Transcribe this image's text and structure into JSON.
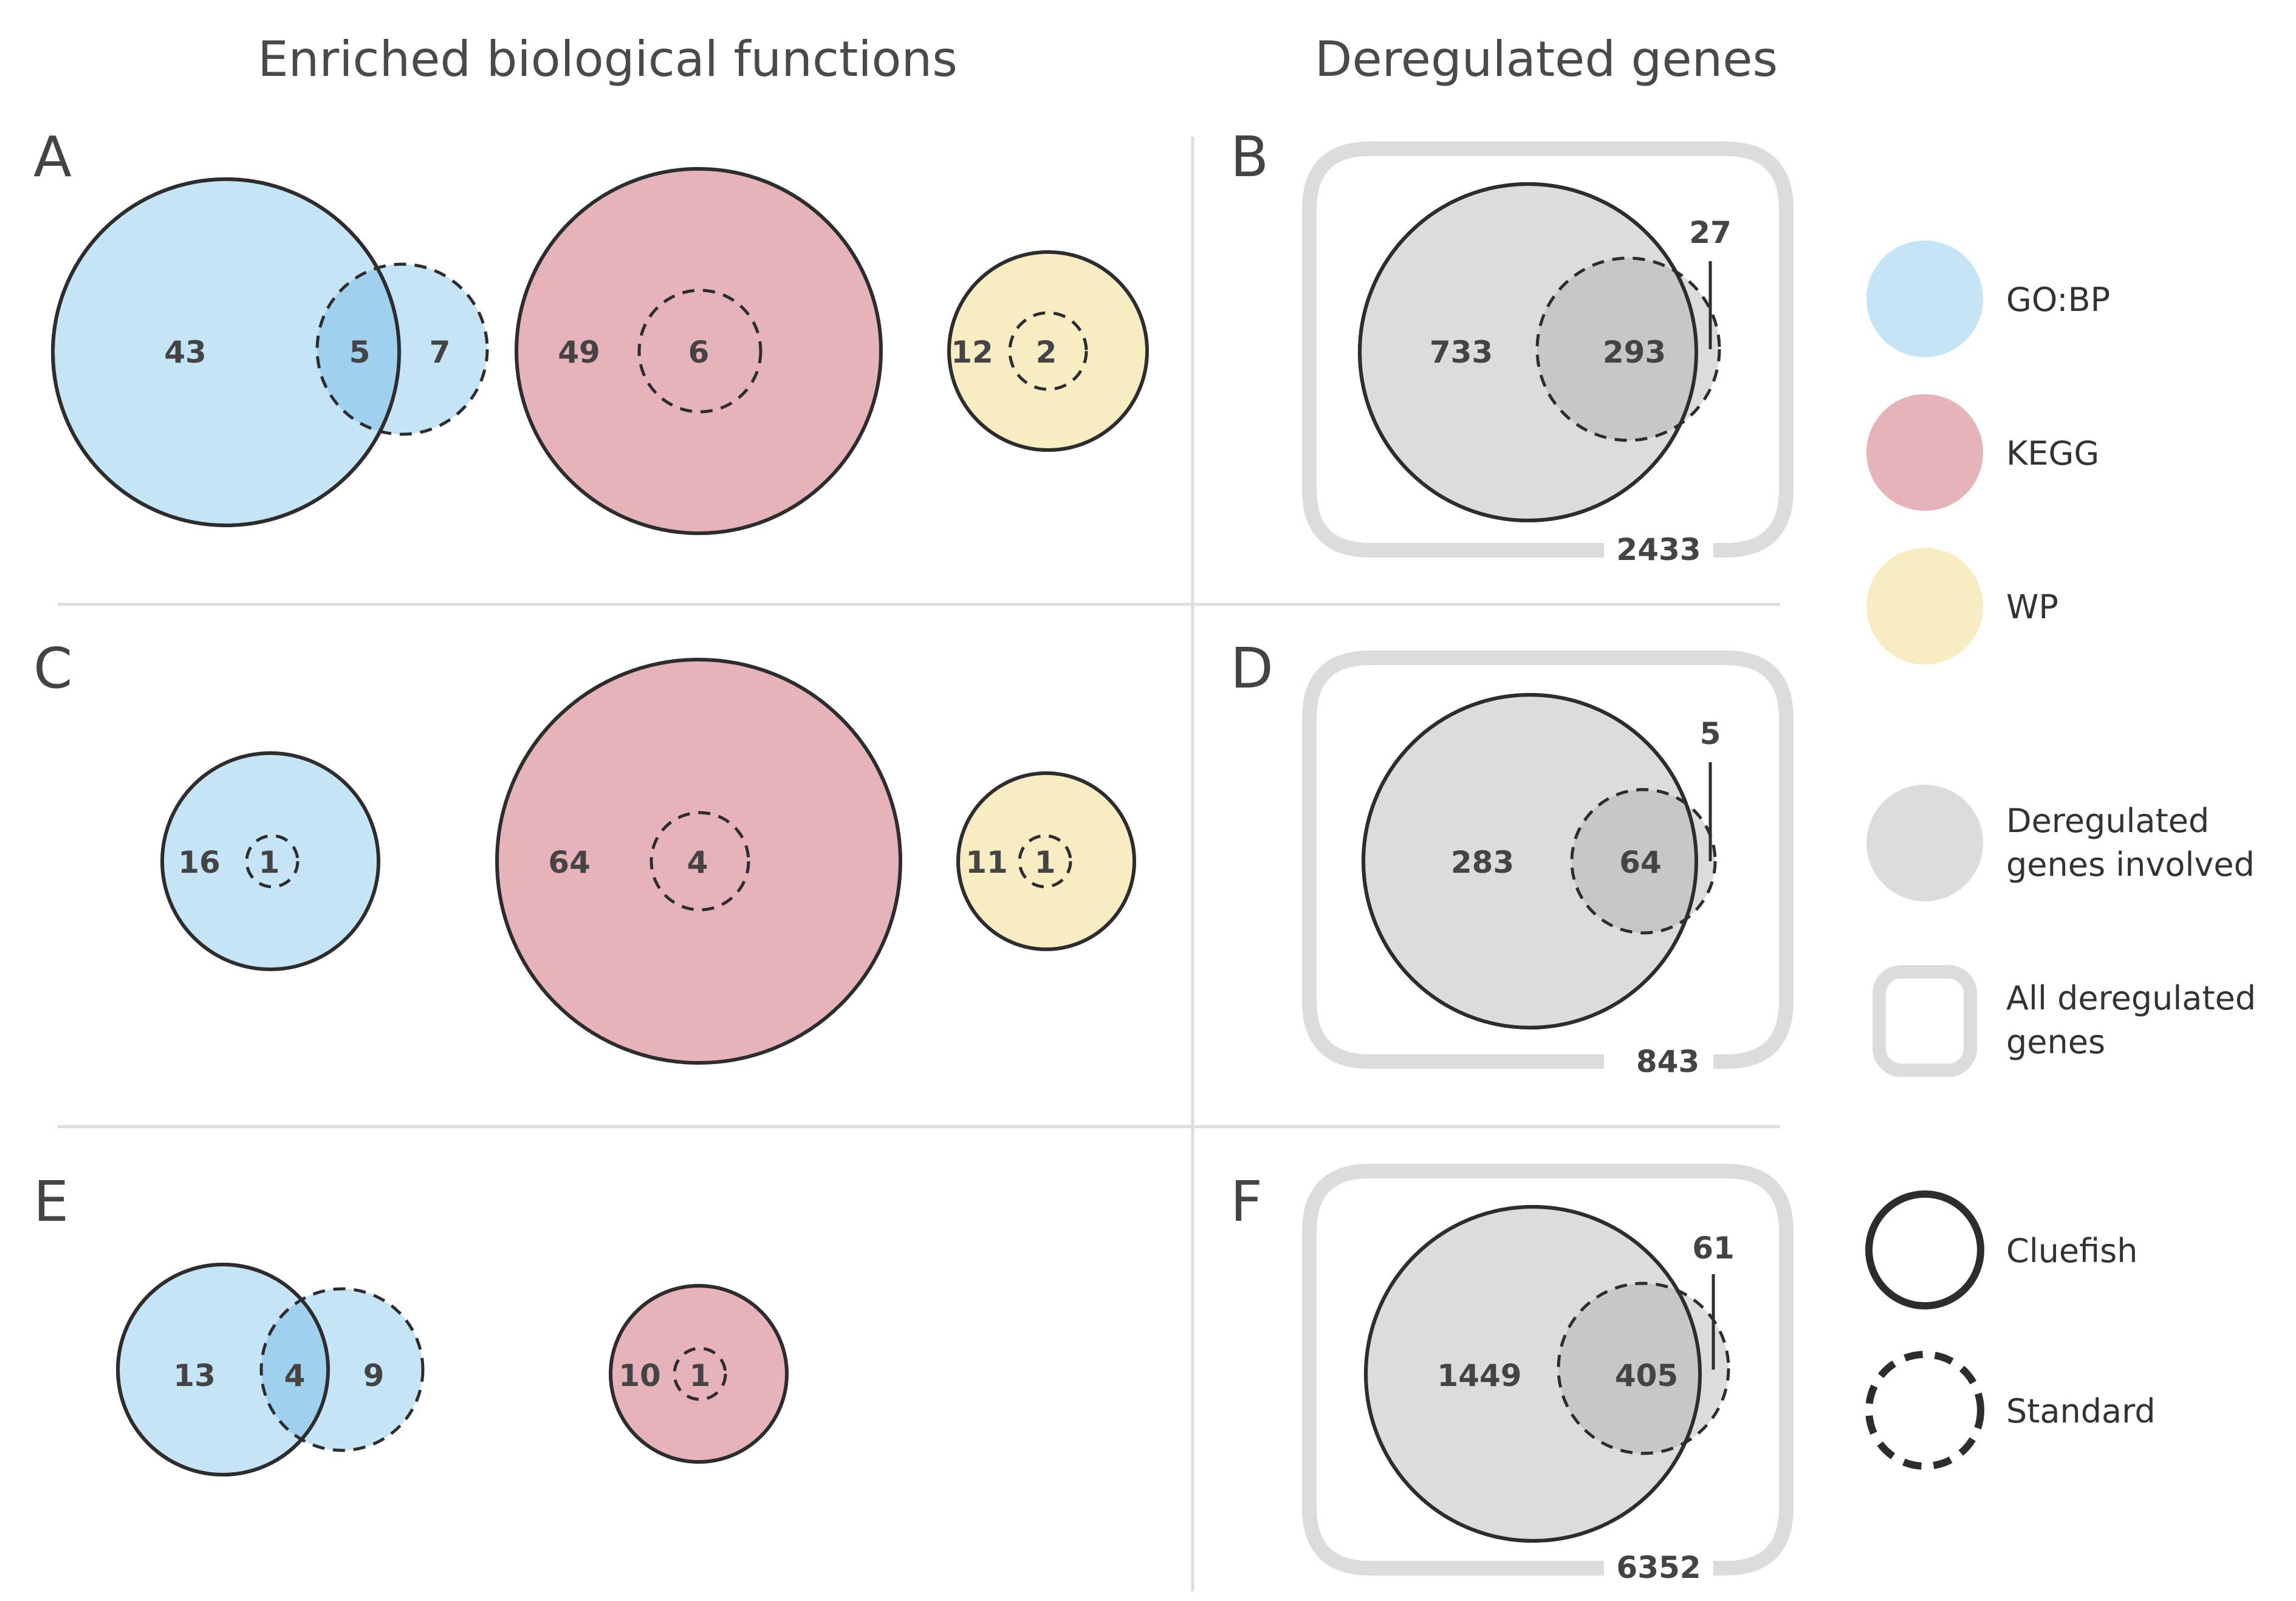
{
  "colors": {
    "gobp": "#c5e4f5",
    "gobp_overlap": "#9fd1ee",
    "kegg": "#e6b3ba",
    "kegg_overlap": "#d9899a",
    "wp": "#f7ecc2",
    "wp_overlap": "#f0dfa0",
    "gene": "#dcdcdc",
    "gene_overlap": "#c7c7c7",
    "frame": "#dcdcdc",
    "divider": "#dddddd",
    "stroke": "#2d2d2d"
  },
  "titles": {
    "left": "Enriched biological functions",
    "right": "Deregulated genes"
  },
  "panels": {
    "A": {
      "letter": "A",
      "gobp": {
        "cluefish_only": "43",
        "both": "5",
        "standard_only": "7"
      },
      "kegg": {
        "cluefish_only": "49",
        "both": "6"
      },
      "wp": {
        "cluefish_only": "12",
        "both": "2"
      }
    },
    "B": {
      "letter": "B",
      "cluefish_only": "733",
      "both": "293",
      "standard_only": "27",
      "total": "2433"
    },
    "C": {
      "letter": "C",
      "gobp": {
        "cluefish_only": "16",
        "both": "1"
      },
      "kegg": {
        "cluefish_only": "64",
        "both": "4"
      },
      "wp": {
        "cluefish_only": "11",
        "both": "1"
      }
    },
    "D": {
      "letter": "D",
      "cluefish_only": "283",
      "both": "64",
      "standard_only": "5",
      "total": "843"
    },
    "E": {
      "letter": "E",
      "gobp": {
        "cluefish_only": "13",
        "both": "4",
        "standard_only": "9"
      },
      "kegg": {
        "cluefish_only": "10",
        "both": "1"
      }
    },
    "F": {
      "letter": "F",
      "cluefish_only": "1449",
      "both": "405",
      "standard_only": "61",
      "total": "6352"
    }
  },
  "legend": {
    "gobp": "GO:BP",
    "kegg": "KEGG",
    "wp": "WP",
    "involved_line1": "Deregulated",
    "involved_line2": "genes involved",
    "all_line1": "All deregulated",
    "all_line2": "genes",
    "cluefish": "Cluefish",
    "standard": "Standard"
  }
}
